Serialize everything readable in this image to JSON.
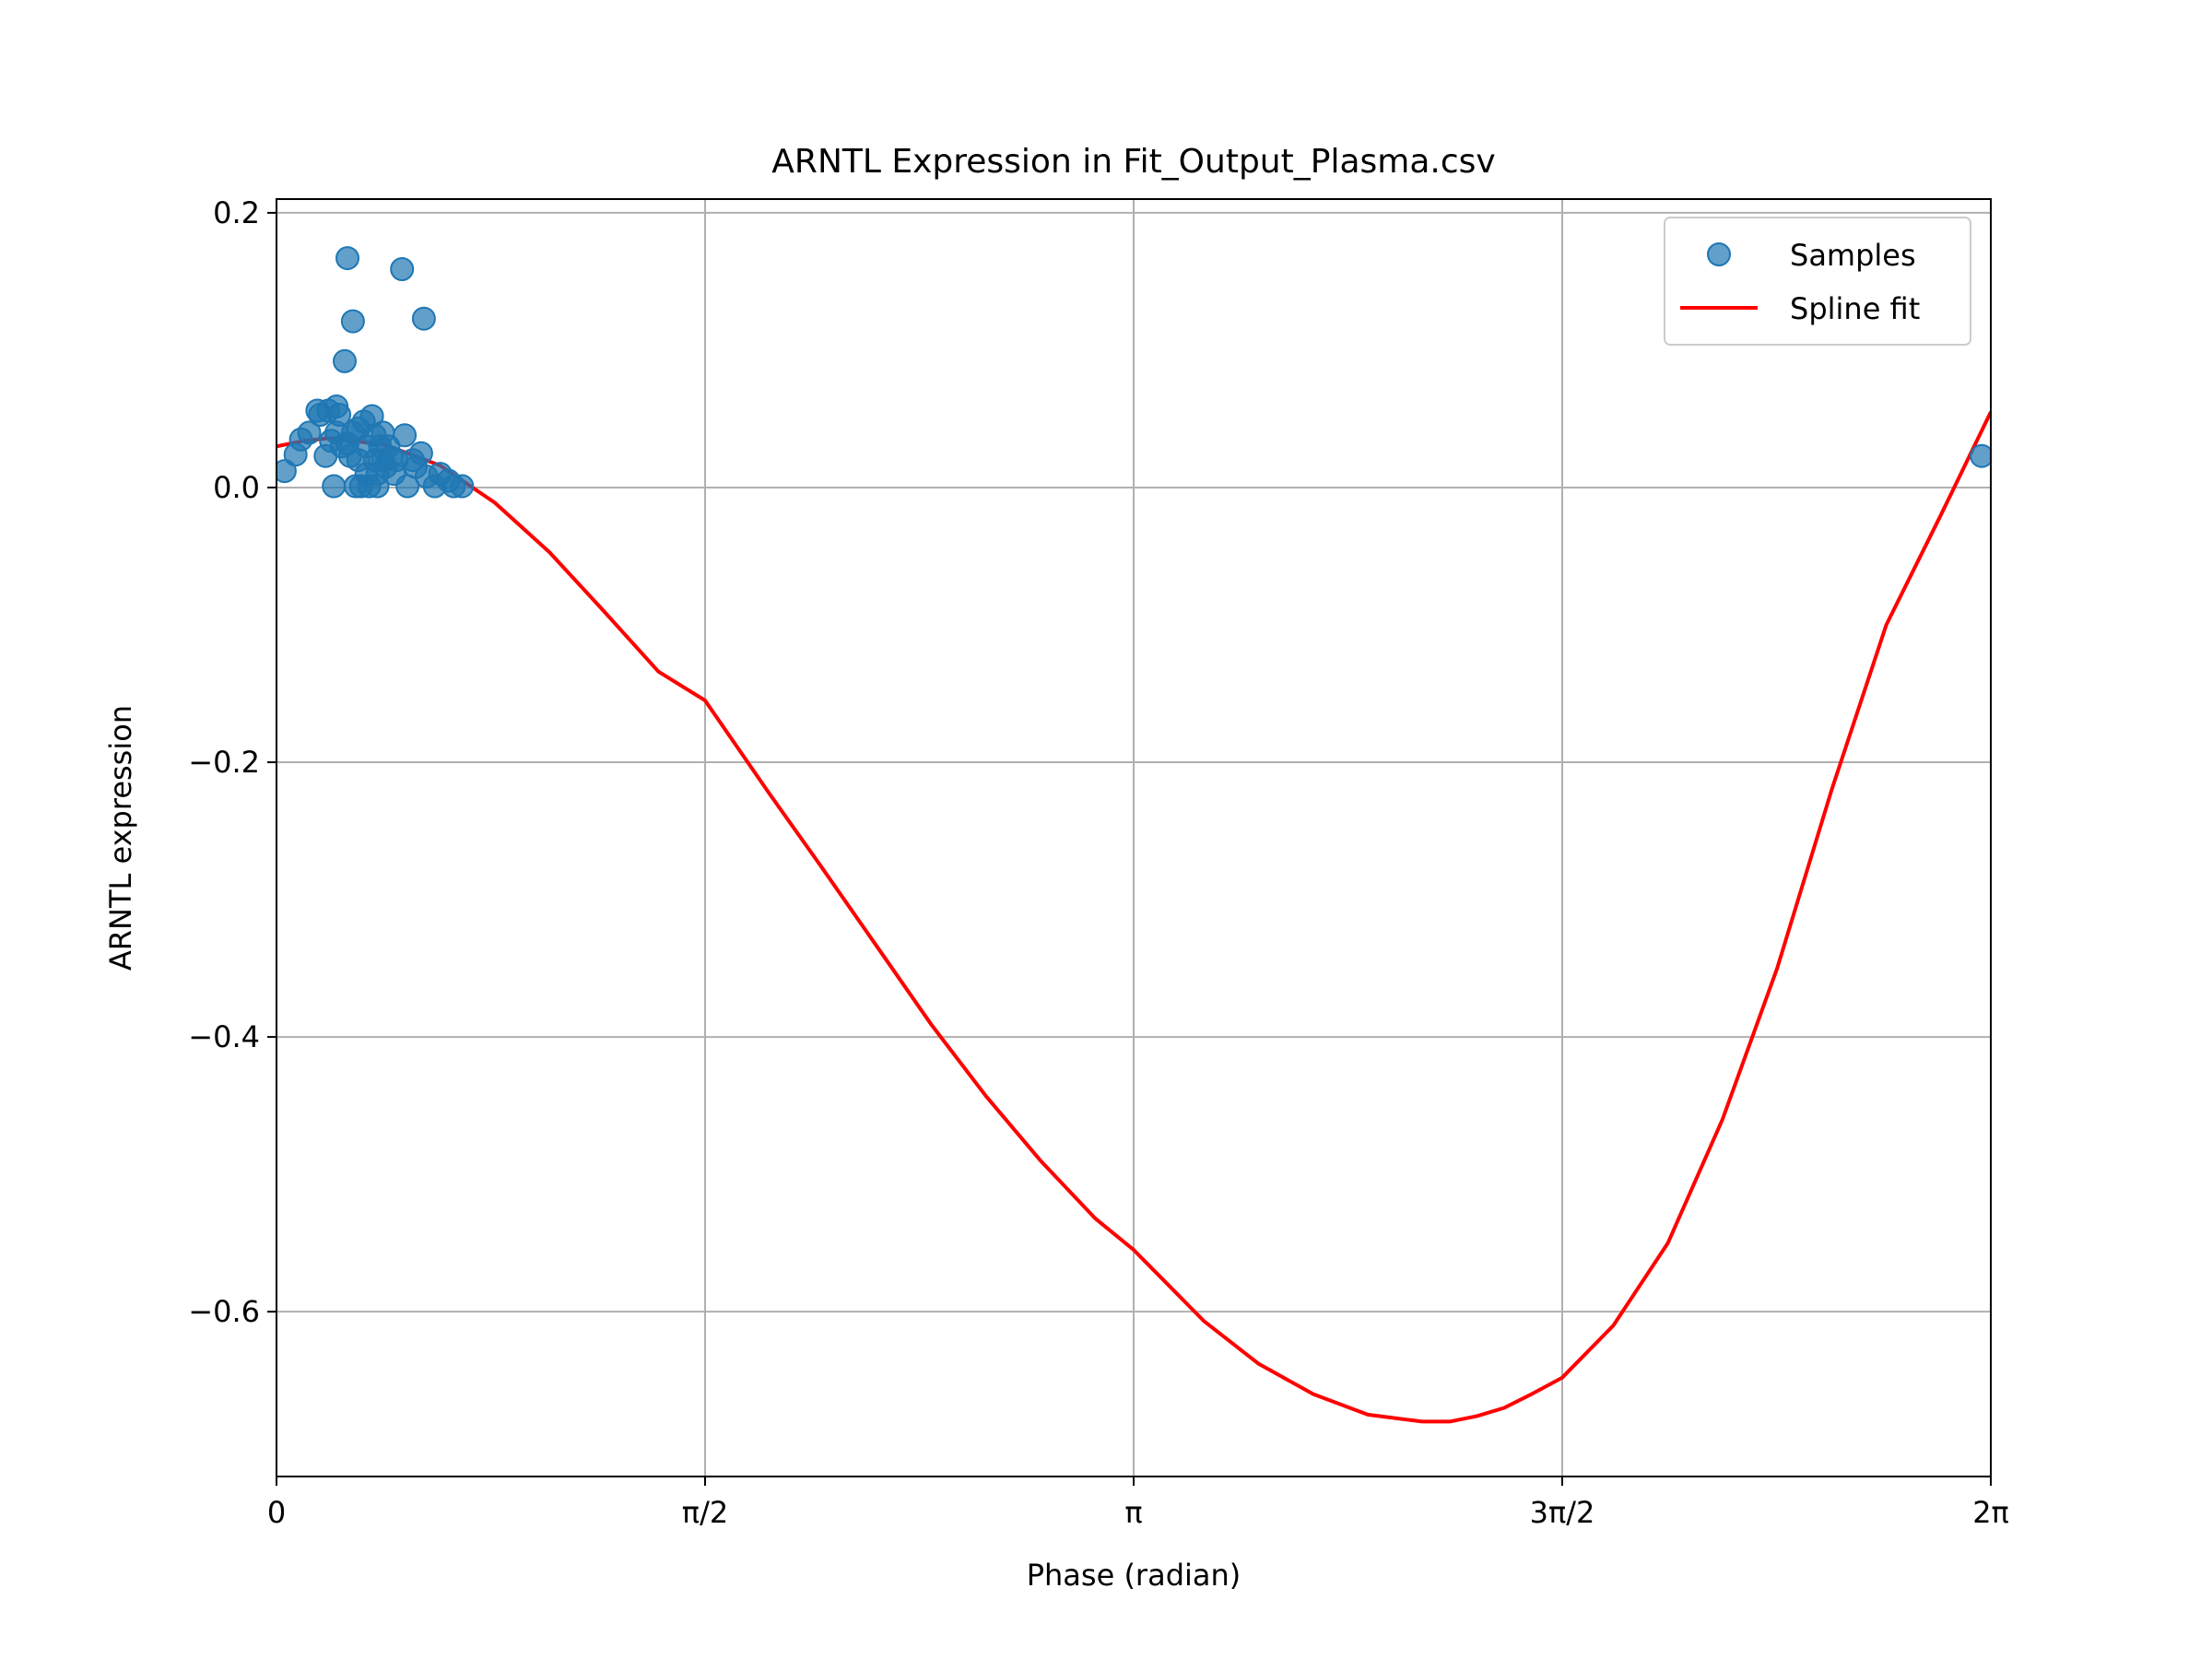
{
  "chart_data": {
    "type": "scatter",
    "title": "ARNTL Expression in Fit_Output_Plasma.csv",
    "xlabel": "Phase (radian)",
    "ylabel": "ARNTL expression",
    "xlim": [
      0,
      6.2832
    ],
    "ylim": [
      -0.72,
      0.21
    ],
    "grid": true,
    "legend_position": "upper right",
    "x_ticks": [
      {
        "value": 0,
        "label": "0"
      },
      {
        "value": 1.5708,
        "label": "π/2"
      },
      {
        "value": 3.1416,
        "label": "π"
      },
      {
        "value": 4.7124,
        "label": "3π/2"
      },
      {
        "value": 6.2832,
        "label": "2π"
      }
    ],
    "y_ticks": [
      {
        "value": 0.2,
        "label": "0.2"
      },
      {
        "value": 0.0,
        "label": "0.0"
      },
      {
        "value": -0.2,
        "label": "−0.2"
      },
      {
        "value": -0.4,
        "label": "−0.4"
      },
      {
        "value": -0.6,
        "label": "−0.6"
      }
    ],
    "series": [
      {
        "name": "Samples",
        "kind": "scatter",
        "color": "#1f77b4",
        "x": [
          0.03,
          0.07,
          0.09,
          0.12,
          0.15,
          0.16,
          0.18,
          0.19,
          0.2,
          0.21,
          0.22,
          0.22,
          0.23,
          0.24,
          0.25,
          0.26,
          0.26,
          0.27,
          0.28,
          0.28,
          0.29,
          0.3,
          0.3,
          0.31,
          0.32,
          0.33,
          0.33,
          0.34,
          0.35,
          0.36,
          0.36,
          0.37,
          0.37,
          0.38,
          0.39,
          0.39,
          0.4,
          0.41,
          0.42,
          0.43,
          0.44,
          0.46,
          0.47,
          0.48,
          0.5,
          0.51,
          0.53,
          0.54,
          0.55,
          0.58,
          0.6,
          0.63,
          0.65,
          0.68,
          6.25
        ],
        "y": [
          0.012,
          0.024,
          0.035,
          0.04,
          0.056,
          0.053,
          0.023,
          0.056,
          0.034,
          0.001,
          0.059,
          0.04,
          0.053,
          0.03,
          0.092,
          0.032,
          0.167,
          0.023,
          0.121,
          0.04,
          0.001,
          0.043,
          0.02,
          0.001,
          0.048,
          0.03,
          0.01,
          0.001,
          0.052,
          0.038,
          0.02,
          0.01,
          0.001,
          0.03,
          0.04,
          0.02,
          0.015,
          0.03,
          0.022,
          0.01,
          0.02,
          0.159,
          0.038,
          0.001,
          0.02,
          0.015,
          0.025,
          0.123,
          0.008,
          0.001,
          0.01,
          0.005,
          0.001,
          0.001,
          0.023
        ]
      },
      {
        "name": "Spline fit",
        "kind": "line",
        "color": "#ff0000",
        "x": [
          0,
          0.1,
          0.2,
          0.4,
          0.6,
          0.8,
          1.0,
          1.2,
          1.4,
          1.5708,
          1.8,
          2.0,
          2.2,
          2.4,
          2.6,
          2.8,
          3.0,
          3.1416,
          3.4,
          3.6,
          3.8,
          4.0,
          4.2,
          4.3,
          4.4,
          4.5,
          4.6,
          4.7124,
          4.9,
          5.1,
          5.3,
          5.5,
          5.7,
          5.9,
          6.1,
          6.2832
        ],
        "y": [
          0.03,
          0.034,
          0.036,
          0.031,
          0.016,
          -0.011,
          -0.047,
          -0.09,
          -0.134,
          -0.155,
          -0.221,
          -0.277,
          -0.334,
          -0.391,
          -0.443,
          -0.49,
          -0.532,
          -0.555,
          -0.607,
          -0.638,
          -0.66,
          -0.675,
          -0.68,
          -0.68,
          -0.676,
          -0.67,
          -0.66,
          -0.648,
          -0.61,
          -0.55,
          -0.46,
          -0.35,
          -0.22,
          -0.1,
          -0.02,
          0.055
        ]
      }
    ]
  }
}
